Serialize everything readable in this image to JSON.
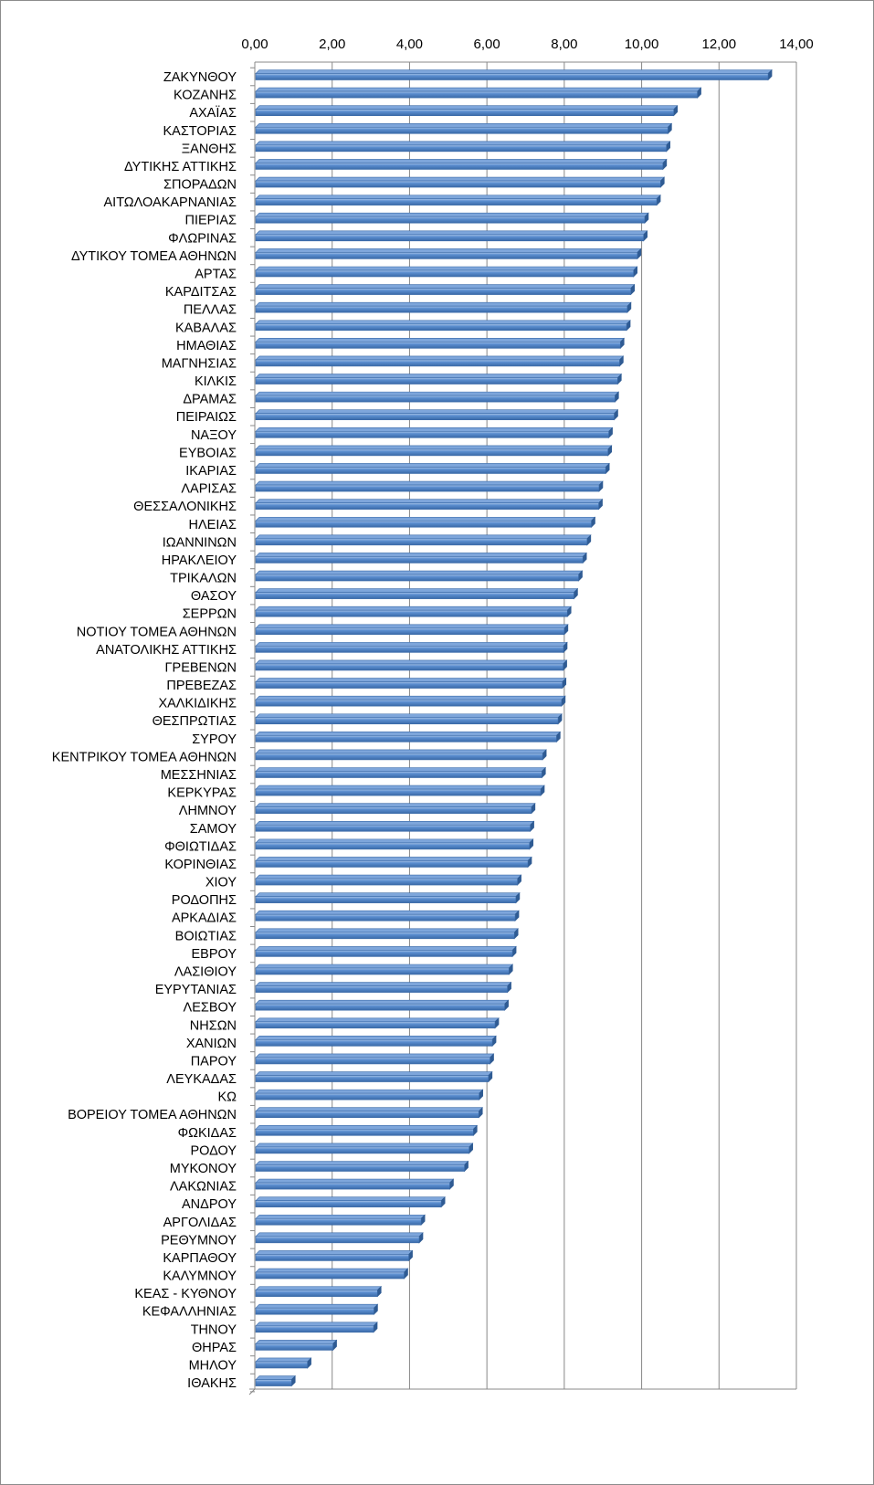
{
  "chart_data": {
    "type": "bar",
    "orientation": "horizontal",
    "title": "",
    "xlabel": "",
    "ylabel": "",
    "xlim": [
      0,
      14
    ],
    "tick_values": [
      0,
      2,
      4,
      6,
      8,
      10,
      12,
      14
    ],
    "tick_labels": [
      "0,00",
      "2,00",
      "4,00",
      "6,00",
      "8,00",
      "10,00",
      "12,00",
      "14,00"
    ],
    "value_axis_position": "top",
    "grid": true,
    "legend": "none",
    "bar_color": "#4f81bd",
    "categories": [
      "ΖΑΚΥΝΘΟΥ",
      "ΚΟΖΑΝΗΣ",
      "ΑΧΑΪΑΣ",
      "ΚΑΣΤΟΡΙΑΣ",
      "ΞΑΝΘΗΣ",
      "ΔΥΤΙΚΗΣ ΑΤΤΙΚΗΣ",
      "ΣΠΟΡΑΔΩΝ",
      "ΑΙΤΩΛΟΑΚΑΡΝΑΝΙΑΣ",
      "ΠΙΕΡΙΑΣ",
      "ΦΛΩΡΙΝΑΣ",
      "ΔΥΤΙΚΟΥ ΤΟΜΕΑ ΑΘΗΝΩΝ",
      "ΑΡΤΑΣ",
      "ΚΑΡΔΙΤΣΑΣ",
      "ΠΕΛΛΑΣ",
      "ΚΑΒΑΛΑΣ",
      "ΗΜΑΘΙΑΣ",
      "ΜΑΓΝΗΣΙΑΣ",
      "ΚΙΛΚΙΣ",
      "ΔΡΑΜΑΣ",
      "ΠΕΙΡΑΙΩΣ",
      "ΝΑΞΟΥ",
      "ΕΥΒΟΙΑΣ",
      "ΙΚΑΡΙΑΣ",
      "ΛΑΡΙΣΑΣ",
      "ΘΕΣΣΑΛΟΝΙΚΗΣ",
      "ΗΛΕΙΑΣ",
      "ΙΩΑΝΝΙΝΩΝ",
      "ΗΡΑΚΛΕΙΟΥ",
      "ΤΡΙΚΑΛΩΝ",
      "ΘΑΣΟΥ",
      "ΣΕΡΡΩΝ",
      "ΝΟΤΙΟΥ ΤΟΜΕΑ ΑΘΗΝΩΝ",
      "ΑΝΑΤΟΛΙΚΗΣ ΑΤΤΙΚΗΣ",
      "ΓΡΕΒΕΝΩΝ",
      "ΠΡΕΒΕΖΑΣ",
      "ΧΑΛΚΙΔΙΚΗΣ",
      "ΘΕΣΠΡΩΤΙΑΣ",
      "ΣΥΡΟΥ",
      "ΚΕΝΤΡΙΚΟΥ ΤΟΜΕΑ ΑΘΗΝΩΝ",
      "ΜΕΣΣΗΝΙΑΣ",
      "ΚΕΡΚΥΡΑΣ",
      "ΛΗΜΝΟΥ",
      "ΣΑΜΟΥ",
      "ΦΘΙΩΤΙΔΑΣ",
      "ΚΟΡΙΝΘΙΑΣ",
      "ΧΙΟΥ",
      "ΡΟΔΟΠΗΣ",
      "ΑΡΚΑΔΙΑΣ",
      "ΒΟΙΩΤΙΑΣ",
      "ΕΒΡΟΥ",
      "ΛΑΣΙΘΙΟΥ",
      "ΕΥΡΥΤΑΝΙΑΣ",
      "ΛΕΣΒΟΥ",
      "ΝΗΣΩΝ",
      "ΧΑΝΙΩΝ",
      "ΠΑΡΟΥ",
      "ΛΕΥΚΑΔΑΣ",
      "ΚΩ",
      "ΒΟΡΕΙΟΥ ΤΟΜΕΑ ΑΘΗΝΩΝ",
      "ΦΩΚΙΔΑΣ",
      "ΡΟΔΟΥ",
      "ΜΥΚΟΝΟΥ",
      "ΛΑΚΩΝΙΑΣ",
      "ΑΝΔΡΟΥ",
      "ΑΡΓΟΛΙΔΑΣ",
      "ΡΕΘΥΜΝΟΥ",
      "ΚΑΡΠΑΘΟΥ",
      "ΚΑΛΥΜΝΟΥ",
      "ΚΕΑΣ - ΚΥΘΝΟΥ",
      "ΚΕΦΑΛΛΗΝΙΑΣ",
      "ΤΗΝΟΥ",
      "ΘΗΡΑΣ",
      "ΜΗΛΟΥ",
      "ΙΘΑΚΗΣ"
    ],
    "values": [
      13.27,
      11.44,
      10.83,
      10.68,
      10.64,
      10.55,
      10.49,
      10.39,
      10.08,
      10.05,
      9.89,
      9.79,
      9.72,
      9.63,
      9.61,
      9.45,
      9.43,
      9.38,
      9.31,
      9.29,
      9.15,
      9.13,
      9.07,
      8.9,
      8.89,
      8.7,
      8.59,
      8.48,
      8.37,
      8.25,
      8.08,
      8.0,
      7.98,
      7.97,
      7.95,
      7.93,
      7.84,
      7.8,
      7.44,
      7.42,
      7.39,
      7.15,
      7.12,
      7.1,
      7.06,
      6.79,
      6.75,
      6.73,
      6.71,
      6.66,
      6.57,
      6.53,
      6.46,
      6.21,
      6.14,
      6.08,
      6.04,
      5.8,
      5.79,
      5.65,
      5.54,
      5.42,
      5.04,
      4.82,
      4.3,
      4.25,
      3.98,
      3.86,
      3.17,
      3.08,
      3.07,
      2.02,
      1.36,
      0.95
    ]
  }
}
